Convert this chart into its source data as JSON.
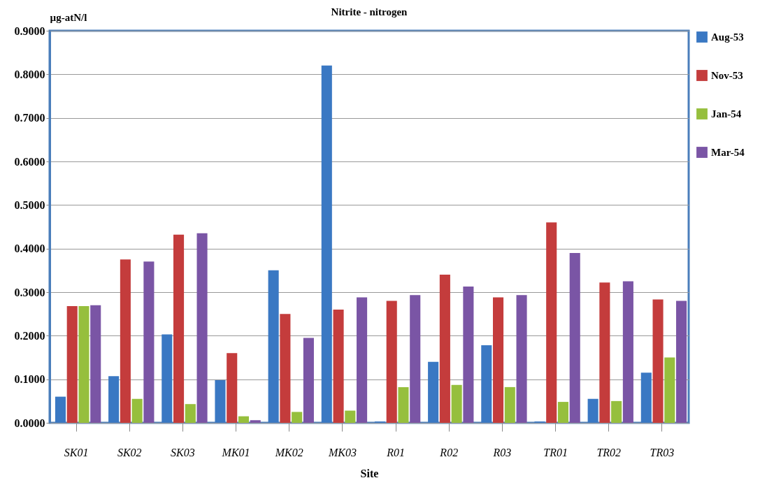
{
  "chart_data": {
    "type": "bar",
    "title": "Nitrite - nitrogen",
    "xlabel": "Site",
    "ylabel": "µg-atN/l",
    "categories": [
      "SK01",
      "SK02",
      "SK03",
      "MK01",
      "MK02",
      "MK03",
      "R01",
      "R02",
      "R03",
      "TR01",
      "TR02",
      "TR03"
    ],
    "series": [
      {
        "name": "Aug-53",
        "color": "#3a78c3",
        "values": [
          0.06,
          0.107,
          0.203,
          0.098,
          0.35,
          0.82,
          0.003,
          0.14,
          0.178,
          0.003,
          0.055,
          0.115
        ]
      },
      {
        "name": "Nov-53",
        "color": "#c43c3c",
        "values": [
          0.268,
          0.375,
          0.432,
          0.16,
          0.25,
          0.26,
          0.28,
          0.34,
          0.288,
          0.46,
          0.322,
          0.283
        ]
      },
      {
        "name": "Jan-54",
        "color": "#96bf3d",
        "values": [
          0.268,
          0.055,
          0.043,
          0.015,
          0.025,
          0.028,
          0.082,
          0.087,
          0.082,
          0.048,
          0.05,
          0.15
        ]
      },
      {
        "name": "Mar-54",
        "color": "#7a55a5",
        "values": [
          0.27,
          0.37,
          0.435,
          0.006,
          0.195,
          0.288,
          0.293,
          0.313,
          0.293,
          0.39,
          0.325,
          0.28
        ]
      }
    ],
    "ylim": [
      0,
      0.9
    ],
    "yticks": [
      {
        "value": 0,
        "label": "0.0000"
      },
      {
        "value": 0.1,
        "label": "0.1000"
      },
      {
        "value": 0.2,
        "label": "0.2000"
      },
      {
        "value": 0.3,
        "label": "0.3000"
      },
      {
        "value": 0.4,
        "label": "0.4000"
      },
      {
        "value": 0.5,
        "label": "0.5000"
      },
      {
        "value": 0.6,
        "label": "0.6000"
      },
      {
        "value": 0.7,
        "label": "0.7000"
      },
      {
        "value": 0.8,
        "label": "0.8000"
      },
      {
        "value": 0.9,
        "label": "0.9000"
      }
    ],
    "grid": "y",
    "legend": "right"
  }
}
